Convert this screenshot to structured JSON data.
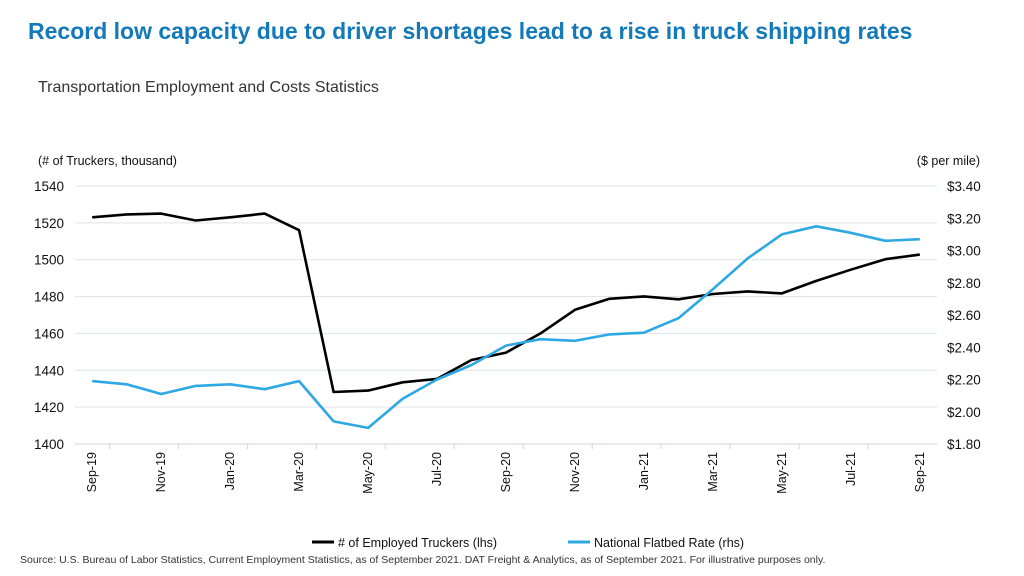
{
  "title": "Record low capacity due to driver shortages lead to a rise in truck shipping rates",
  "subtitle": "Transportation Employment and Costs Statistics",
  "source": "Source: U.S. Bureau of Labor Statistics, Current Employment Statistics, as of September 2021. DAT Freight & Analytics, as of September 2021. For illustrative purposes only.",
  "chart_data": {
    "type": "line",
    "ylabel_left": "(# of Truckers, thousand)",
    "ylabel_right": "($ per mile)",
    "ylim_left": [
      1400,
      1540
    ],
    "ylim_right": [
      1.8,
      3.4
    ],
    "yticks_left": [
      "1540",
      "1520",
      "1500",
      "1480",
      "1460",
      "1440",
      "1420",
      "1400"
    ],
    "yticks_right": [
      "$3.40",
      "$3.20",
      "$3.00",
      "$2.80",
      "$2.60",
      "$2.40",
      "$2.20",
      "$2.00",
      "$1.80"
    ],
    "grid": true,
    "legend": "bottom",
    "categories": [
      "Sep-19",
      "Oct-19",
      "Nov-19",
      "Dec-19",
      "Jan-20",
      "Feb-20",
      "Mar-20",
      "Apr-20",
      "May-20",
      "Jun-20",
      "Jul-20",
      "Aug-20",
      "Sep-20",
      "Oct-20",
      "Nov-20",
      "Dec-20",
      "Jan-21",
      "Feb-21",
      "Mar-21",
      "Apr-21",
      "May-21",
      "Jun-21",
      "Jul-21",
      "Aug-21",
      "Sep-21"
    ],
    "xtick_labels": [
      "Sep-19",
      "Nov-19",
      "Jan-20",
      "Mar-20",
      "May-20",
      "Jul-20",
      "Sep-20",
      "Nov-20",
      "Jan-21",
      "Mar-21",
      "May-21",
      "Jul-21",
      "Sep-21"
    ],
    "series": [
      {
        "name": "# of Employed Truckers (lhs)",
        "axis": "left",
        "color": "#000000",
        "values": [
          1523,
          1524.6,
          1525,
          1521.3,
          1523,
          1525,
          1516,
          1428.2,
          1429,
          1433.5,
          1435.3,
          1445.6,
          1449.6,
          1460,
          1472.8,
          1478.8,
          1480.1,
          1478.5,
          1481.4,
          1482.8,
          1481.7,
          1488.5,
          1494.6,
          1500.3,
          1502.8
        ]
      },
      {
        "name": "National Flatbed Rate (rhs)",
        "axis": "right",
        "color": "#2ea8e2",
        "values": [
          2.19,
          2.17,
          2.11,
          2.16,
          2.17,
          2.14,
          2.19,
          1.94,
          1.9,
          2.08,
          2.2,
          2.29,
          2.41,
          2.45,
          2.44,
          2.48,
          2.49,
          2.58,
          2.76,
          2.95,
          3.1,
          3.15,
          3.11,
          3.06,
          3.07
        ]
      }
    ]
  }
}
